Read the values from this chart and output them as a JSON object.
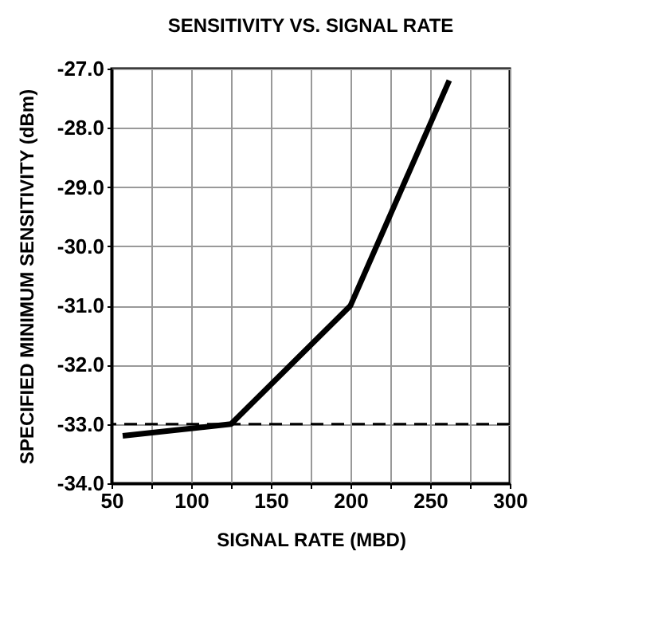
{
  "chart_data": {
    "type": "line",
    "title": "SENSITIVITY VS. SIGNAL RATE",
    "xlabel": "SIGNAL RATE (MBD)",
    "ylabel": "SPECIFIED MINIMUM SENSITIVITY (dBm)",
    "x": [
      57,
      125,
      200,
      262
    ],
    "series": [
      {
        "color": "#000000",
        "values": [
          -33.2,
          -33.0,
          -31.0,
          -27.2
        ]
      }
    ],
    "xlim": [
      50,
      300
    ],
    "xticks": [
      50,
      {
        "value": 75,
        "label": null
      },
      100,
      {
        "value": 125,
        "label": null
      },
      150,
      {
        "value": 175,
        "label": null
      },
      200,
      {
        "value": 225,
        "label": null
      },
      250,
      {
        "value": 275,
        "label": null
      },
      300
    ],
    "ylim": [
      -34,
      -27
    ],
    "yticks": [
      {
        "value": -34,
        "label": "-34.0"
      },
      {
        "value": -33,
        "label": "-33.0"
      },
      {
        "value": -32,
        "label": "-32.0"
      },
      {
        "value": -31,
        "label": "-31.0"
      },
      {
        "value": -30,
        "label": "-30.0"
      },
      {
        "value": -29,
        "label": "-29.0"
      },
      {
        "value": -28,
        "label": "-28.0"
      },
      {
        "value": -27,
        "label": "-27.0"
      }
    ],
    "ref_lines": [
      {
        "axis": "y",
        "value": -33,
        "color": "#000000",
        "line_style": "dashed"
      }
    ],
    "grid": true,
    "marker": "none",
    "line_style": "solid"
  }
}
